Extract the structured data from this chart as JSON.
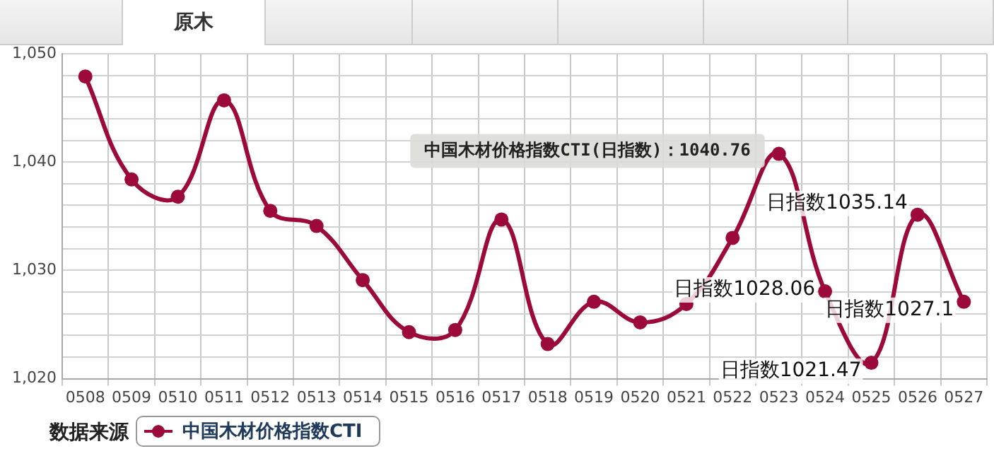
{
  "chart_data": {
    "type": "line",
    "categories": [
      "0508",
      "0509",
      "0510",
      "0511",
      "0512",
      "0513",
      "0514",
      "0515",
      "0516",
      "0517",
      "0518",
      "0519",
      "0520",
      "0521",
      "0522",
      "0523",
      "0524",
      "0525",
      "0526",
      "0527"
    ],
    "series": [
      {
        "name": "中国木材价格指数CTI",
        "color": "#9b0a3b",
        "values": [
          1047.9,
          1038.4,
          1036.8,
          1045.7,
          1035.5,
          1034.1,
          1029.1,
          1024.3,
          1024.5,
          1034.7,
          1023.2,
          1027.1,
          1025.2,
          1026.9,
          1033.0,
          1040.76,
          1028.06,
          1021.47,
          1035.14,
          1027.1
        ],
        "value_labels": [
          null,
          null,
          null,
          null,
          null,
          null,
          null,
          null,
          null,
          null,
          null,
          null,
          null,
          null,
          null,
          null,
          "日指数1028.06",
          "日指数1021.47",
          "日指数1035.14",
          "日指数1027.1"
        ]
      }
    ],
    "ylim": [
      1020,
      1050
    ],
    "yticks": [
      {
        "value": 1020,
        "label": "1,020"
      },
      {
        "value": 1022,
        "label": null
      },
      {
        "value": 1024,
        "label": null
      },
      {
        "value": 1026,
        "label": null
      },
      {
        "value": 1028,
        "label": null
      },
      {
        "value": 1030,
        "label": "1,030"
      },
      {
        "value": 1032,
        "label": null
      },
      {
        "value": 1034,
        "label": null
      },
      {
        "value": 1036,
        "label": null
      },
      {
        "value": 1038,
        "label": null
      },
      {
        "value": 1040,
        "label": "1,040"
      },
      {
        "value": 1042,
        "label": null
      },
      {
        "value": 1044,
        "label": null
      },
      {
        "value": 1046,
        "label": null
      },
      {
        "value": 1048,
        "label": null
      },
      {
        "value": 1050,
        "label": "1,050"
      }
    ],
    "grid": true,
    "legend": "bottom left",
    "marker": "circle",
    "line_style": "solid",
    "annotations": [
      "原木",
      {
        "text": "中国木材价格指数CTI(日指数)：1040.76",
        "x": "0523",
        "y": 1040.76
      },
      "数据来源"
    ]
  }
}
